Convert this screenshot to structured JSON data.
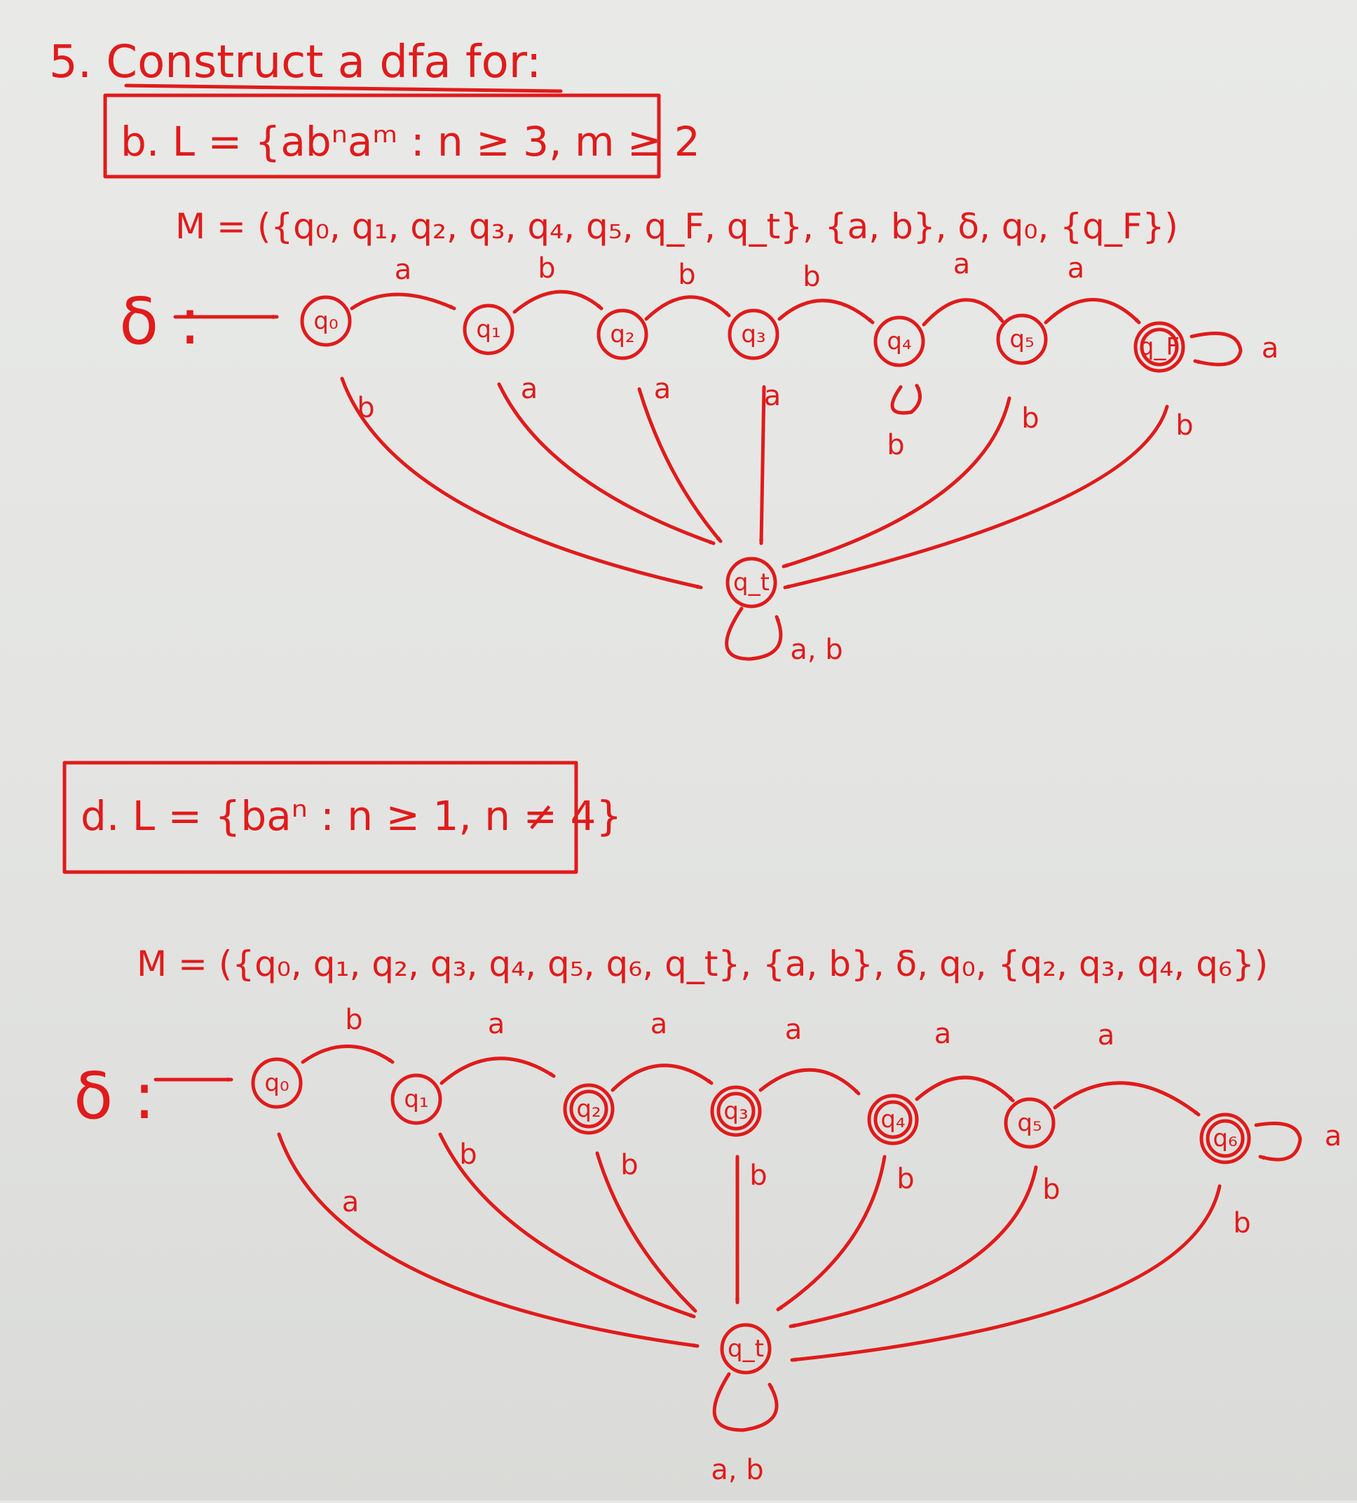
{
  "problem": {
    "heading": "5. Construct a dfa for:"
  },
  "part_b": {
    "language": "b. L = {abⁿaᵐ : n ≥ 3, m ≥ 2",
    "machine": "M = ({q₀, q₁, q₂, q₃, q₄, q₅, q_F, q_t}, {a, b}, δ, q₀, {q_F})",
    "delta_label": "δ :",
    "states": [
      {
        "id": "q0",
        "label": "q₀",
        "final": false
      },
      {
        "id": "q1",
        "label": "q₁",
        "final": false
      },
      {
        "id": "q2",
        "label": "q₂",
        "final": false
      },
      {
        "id": "q3",
        "label": "q₃",
        "final": false
      },
      {
        "id": "q4",
        "label": "q₄",
        "final": false
      },
      {
        "id": "q5",
        "label": "q₅",
        "final": false
      },
      {
        "id": "qF",
        "label": "q_F",
        "final": true
      },
      {
        "id": "qt",
        "label": "q_t",
        "final": false
      }
    ],
    "transitions": [
      {
        "from": "q0",
        "to": "q1",
        "symbol": "a"
      },
      {
        "from": "q1",
        "to": "q2",
        "symbol": "b"
      },
      {
        "from": "q2",
        "to": "q3",
        "symbol": "b"
      },
      {
        "from": "q3",
        "to": "q4",
        "symbol": "b"
      },
      {
        "from": "q4",
        "to": "q5",
        "symbol": "a"
      },
      {
        "from": "q5",
        "to": "qF",
        "symbol": "a"
      },
      {
        "from": "qF",
        "to": "qF",
        "symbol": "a"
      },
      {
        "from": "q4",
        "to": "q4",
        "symbol": "b"
      },
      {
        "from": "q0",
        "to": "qt",
        "symbol": "b"
      },
      {
        "from": "q1",
        "to": "qt",
        "symbol": "a"
      },
      {
        "from": "q2",
        "to": "qt",
        "symbol": "a"
      },
      {
        "from": "q3",
        "to": "qt",
        "symbol": "a"
      },
      {
        "from": "q5",
        "to": "qt",
        "symbol": "b"
      },
      {
        "from": "qF",
        "to": "qt",
        "symbol": "b"
      },
      {
        "from": "qt",
        "to": "qt",
        "symbol": "a, b"
      }
    ]
  },
  "part_d": {
    "language": "d. L = {baⁿ : n ≥ 1, n ≠ 4}",
    "machine": "M = ({q₀, q₁, q₂, q₃, q₄, q₅, q₆, q_t}, {a, b}, δ, q₀, {q₂, q₃, q₄, q₆})",
    "delta_label": "δ :",
    "states": [
      {
        "id": "q0",
        "label": "q₀",
        "final": false
      },
      {
        "id": "q1",
        "label": "q₁",
        "final": false
      },
      {
        "id": "q2",
        "label": "q₂",
        "final": true
      },
      {
        "id": "q3",
        "label": "q₃",
        "final": true
      },
      {
        "id": "q4",
        "label": "q₄",
        "final": true
      },
      {
        "id": "q5",
        "label": "q₅",
        "final": false
      },
      {
        "id": "q6",
        "label": "q₆",
        "final": true
      },
      {
        "id": "qt",
        "label": "q_t",
        "final": false
      }
    ],
    "transitions": [
      {
        "from": "q0",
        "to": "q1",
        "symbol": "b"
      },
      {
        "from": "q1",
        "to": "q2",
        "symbol": "a"
      },
      {
        "from": "q2",
        "to": "q3",
        "symbol": "a"
      },
      {
        "from": "q3",
        "to": "q4",
        "symbol": "a"
      },
      {
        "from": "q4",
        "to": "q5",
        "symbol": "a"
      },
      {
        "from": "q5",
        "to": "q6",
        "symbol": "a"
      },
      {
        "from": "q6",
        "to": "q6",
        "symbol": "a"
      },
      {
        "from": "q0",
        "to": "qt",
        "symbol": "a"
      },
      {
        "from": "q1",
        "to": "qt",
        "symbol": "b"
      },
      {
        "from": "q2",
        "to": "qt",
        "symbol": "b"
      },
      {
        "from": "q3",
        "to": "qt",
        "symbol": "b"
      },
      {
        "from": "q4",
        "to": "qt",
        "symbol": "b"
      },
      {
        "from": "q5",
        "to": "qt",
        "symbol": "b"
      },
      {
        "from": "q6",
        "to": "qt",
        "symbol": "b"
      },
      {
        "from": "qt",
        "to": "qt",
        "symbol": "a, b"
      }
    ]
  },
  "colors": {
    "ink": "#e01b1b",
    "board": "#e6e7e5"
  }
}
